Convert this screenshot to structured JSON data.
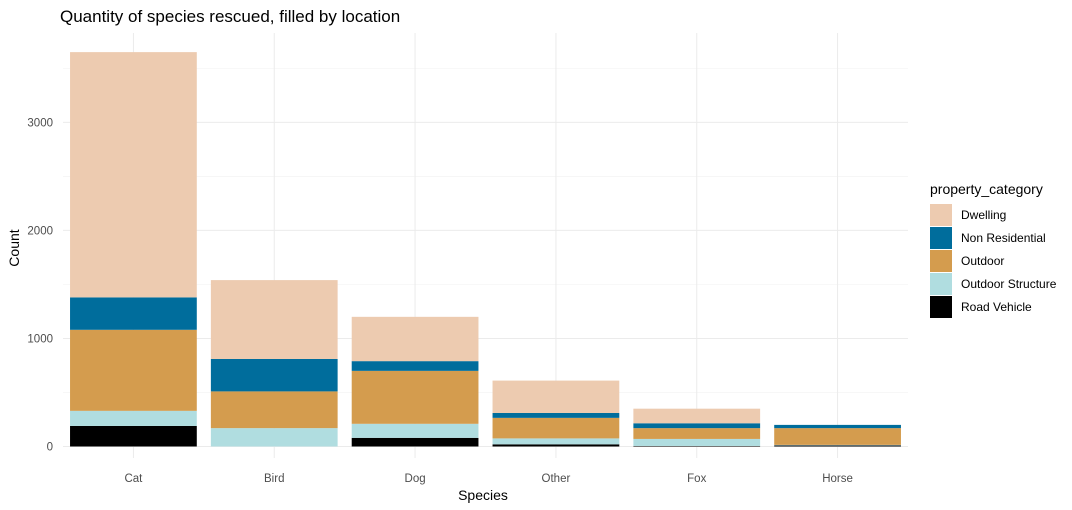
{
  "chart_data": {
    "type": "bar",
    "stacked": true,
    "title": "Quantity of species rescued, filled by location",
    "xlabel": "Species",
    "ylabel": "Count",
    "categories": [
      "Cat",
      "Bird",
      "Dog",
      "Other",
      "Fox",
      "Horse"
    ],
    "y_ticks": [
      0,
      1000,
      2000,
      3000
    ],
    "ylim": [
      -30,
      3800
    ],
    "grid": true,
    "legend": {
      "title": "property_category",
      "position": "right"
    },
    "series": [
      {
        "name": "Road Vehicle",
        "color": "#000000",
        "values": [
          190,
          0,
          80,
          20,
          5,
          10
        ]
      },
      {
        "name": "Outdoor Structure",
        "color": "#b0dde0",
        "values": [
          140,
          170,
          130,
          55,
          65,
          5
        ]
      },
      {
        "name": "Outdoor",
        "color": "#d49c4e",
        "values": [
          750,
          340,
          490,
          190,
          100,
          155
        ]
      },
      {
        "name": "Non Residential",
        "color": "#006d9c",
        "values": [
          300,
          300,
          90,
          45,
          45,
          30
        ]
      },
      {
        "name": "Dwelling",
        "color": "#edcbb0",
        "values": [
          2270,
          730,
          410,
          300,
          135,
          0
        ]
      }
    ],
    "legend_order": [
      "Dwelling",
      "Non Residential",
      "Outdoor",
      "Outdoor Structure",
      "Road Vehicle"
    ]
  }
}
